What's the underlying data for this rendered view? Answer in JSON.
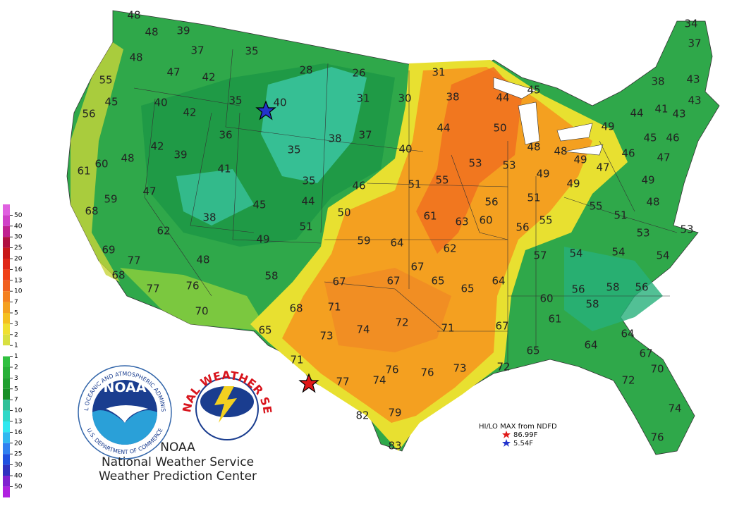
{
  "map": {
    "labels": [
      48,
      48,
      39,
      37,
      35,
      48,
      47,
      42,
      28,
      26,
      31,
      55,
      45,
      40,
      35,
      40,
      31,
      30,
      38,
      44,
      45,
      38,
      43,
      34,
      37,
      56,
      42,
      44,
      41,
      43,
      43,
      36,
      38,
      37,
      44,
      50,
      49,
      42,
      39,
      35,
      40,
      48,
      48,
      49,
      45,
      46,
      46,
      47,
      61,
      60,
      48,
      41,
      53,
      53,
      49,
      47,
      49,
      35,
      46,
      51,
      55,
      49,
      59,
      47,
      45,
      44,
      50,
      51,
      56,
      48,
      55,
      68,
      38,
      51,
      61,
      63,
      60,
      56,
      55,
      51,
      53,
      53,
      62,
      49,
      59,
      64,
      62,
      69,
      77,
      48,
      57,
      54,
      54,
      54,
      68,
      58,
      67,
      67,
      67,
      65,
      65,
      64,
      77,
      76,
      56,
      58,
      56,
      60,
      58,
      70,
      68,
      71,
      61,
      65,
      73,
      74,
      72,
      71,
      67,
      64,
      65,
      64,
      67,
      71,
      76,
      76,
      73,
      72,
      70,
      77,
      74,
      72,
      79,
      82,
      74,
      83,
      76
    ]
  },
  "legend": {
    "labels": [
      50,
      40,
      30,
      25,
      20,
      16,
      13,
      10,
      7,
      5,
      3,
      2,
      1,
      1,
      2,
      3,
      5,
      7,
      10,
      13,
      16,
      20,
      25,
      30,
      40,
      50
    ]
  },
  "hilo": {
    "title": "HI/LO MAX from NDFD",
    "max": "86.99F",
    "min": "5.54F"
  },
  "logos": {
    "noaa": "NOAA",
    "noaa_top": "NATIONAL OCEANIC AND ATMOSPHERIC ADMINISTRATION",
    "noaa_bottom": "U.S. DEPARTMENT OF COMMERCE",
    "nws": "NATIONAL WEATHER SERVICE"
  },
  "credits": {
    "agency": "NOAA",
    "service": "National Weather Service",
    "center": "Weather Prediction Center"
  }
}
